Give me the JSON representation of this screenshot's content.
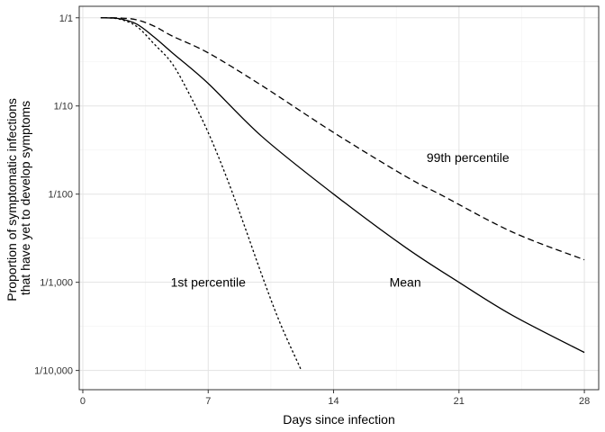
{
  "chart_data": {
    "type": "line",
    "title": "",
    "xlabel": "Days since infection",
    "ylabel_lines": [
      "Proportion of symptomatic infections",
      "that have yet to develop symptoms"
    ],
    "x_range": [
      -0.2,
      28.8
    ],
    "y_range": [
      6.05e-05,
      1.35
    ],
    "y_scale": "log",
    "x_ticks": [
      0,
      7,
      14,
      21,
      28
    ],
    "x_tick_labels": [
      "0",
      "7",
      "14",
      "21",
      "28"
    ],
    "y_ticks": [
      1,
      0.1,
      0.01,
      0.001,
      0.0001
    ],
    "y_tick_labels": [
      "1/1",
      "1/10",
      "1/100",
      "1/1,000",
      "1/10,000"
    ],
    "grid": true,
    "legend": "none",
    "series": [
      {
        "linestyle": "dashed",
        "x": [
          1,
          2,
          3,
          4,
          5,
          7,
          10,
          14,
          18,
          20,
          24,
          28
        ],
        "y": [
          1,
          0.995,
          0.95,
          0.8,
          0.62,
          0.4,
          0.17,
          0.05,
          0.016,
          0.0098,
          0.0037,
          0.0018
        ]
      },
      {
        "linestyle": "solid",
        "x": [
          1,
          2,
          3,
          4,
          5,
          7,
          10,
          14,
          18,
          21,
          24,
          28
        ],
        "y": [
          1,
          0.98,
          0.85,
          0.6,
          0.4,
          0.18,
          0.045,
          0.01,
          0.0025,
          0.001,
          0.00042,
          0.00016
        ]
      },
      {
        "linestyle": "dotted",
        "x": [
          1,
          2,
          3,
          4,
          5,
          6,
          7,
          8,
          9,
          10,
          11,
          12.2
        ],
        "y": [
          1,
          0.97,
          0.8,
          0.5,
          0.3,
          0.13,
          0.05,
          0.016,
          0.0045,
          0.0012,
          0.00035,
          0.0001
        ]
      }
    ],
    "annotations": [
      {
        "text": "99th percentile",
        "x": 21.5,
        "y": 0.026
      },
      {
        "text": "Mean",
        "x": 18,
        "y": 0.001
      },
      {
        "text": "1st percentile",
        "x": 7,
        "y": 0.001
      }
    ]
  }
}
